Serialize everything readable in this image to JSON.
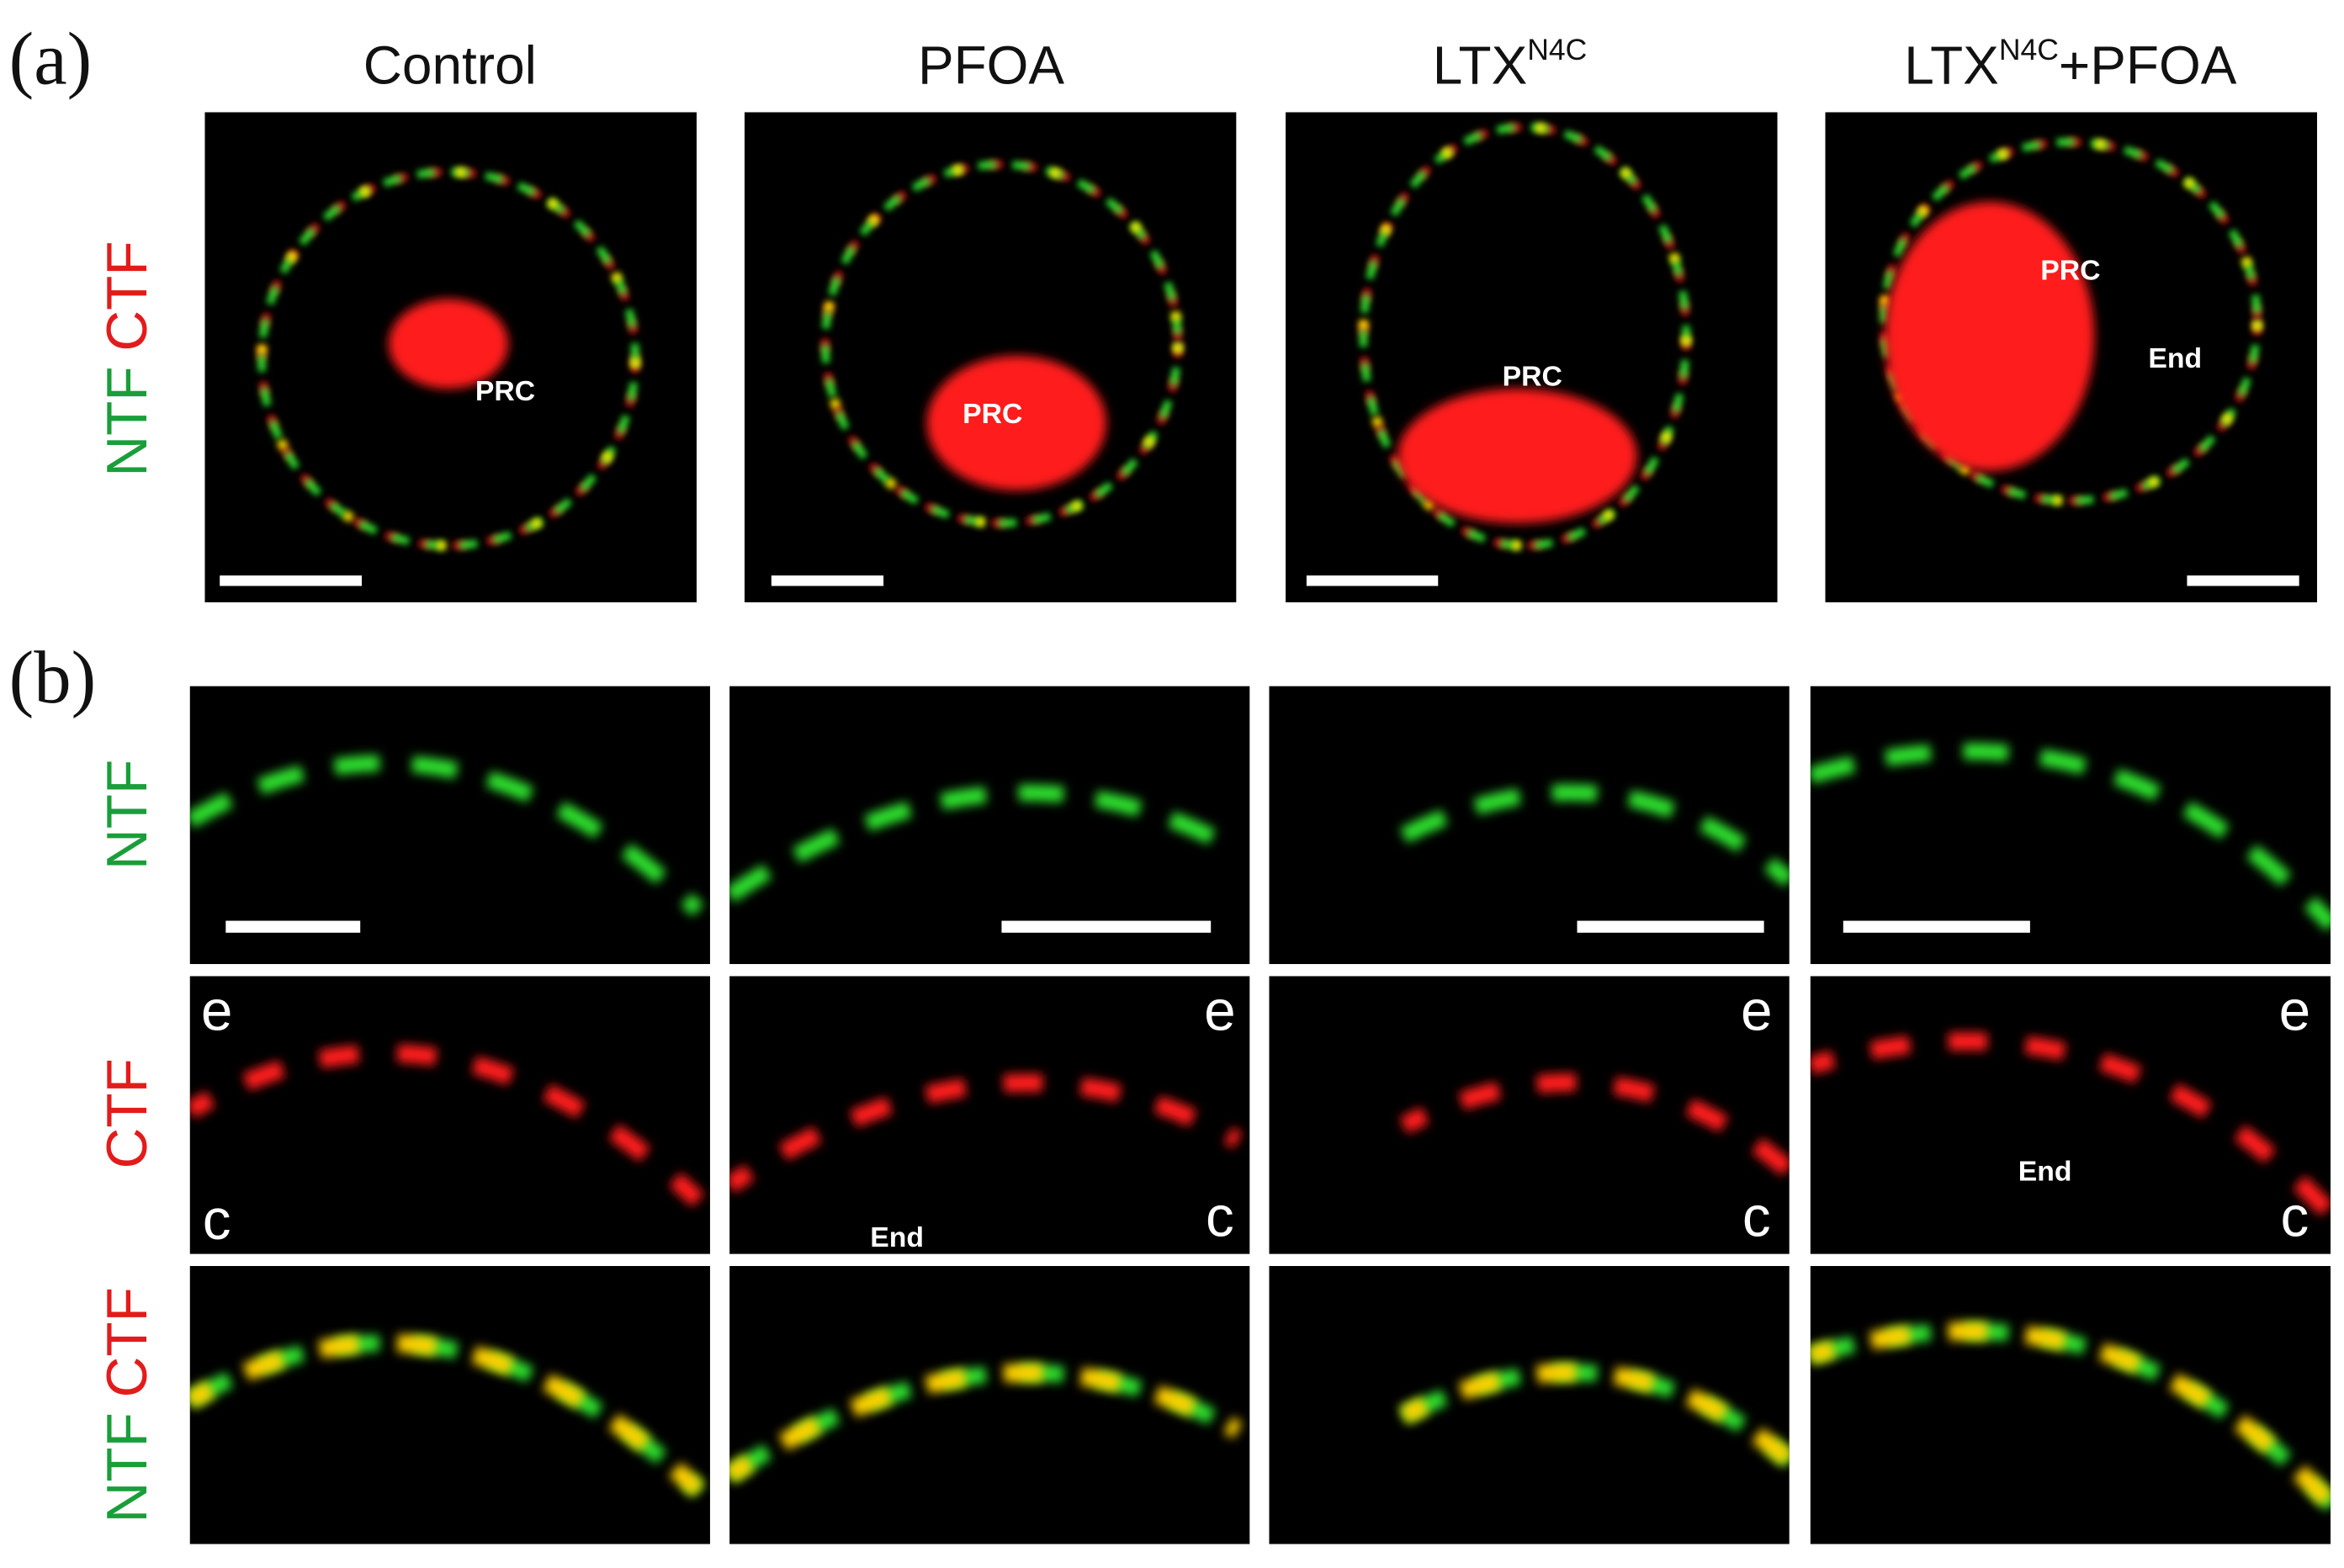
{
  "panel_a": {
    "label": "(a)",
    "row_label": [
      "NTF",
      "CTF"
    ],
    "columns": [
      {
        "title": "Control"
      },
      {
        "title": "PFOA"
      },
      {
        "title": "LTX",
        "sup": "N4C"
      },
      {
        "title": "LTX",
        "sup": "N4C",
        "suffix": "+PFOA"
      }
    ],
    "annotations": [
      [
        "PRC"
      ],
      [
        "PRC"
      ],
      [
        "PRC"
      ],
      [
        "PRC",
        "End"
      ]
    ]
  },
  "panel_b": {
    "label": "(b)",
    "row_labels": [
      [
        "NTF"
      ],
      [
        "CTF"
      ],
      [
        "NTF",
        "CTF"
      ]
    ],
    "ctf_annotations": [
      [
        "e",
        "c"
      ],
      [
        "e",
        "c",
        "End"
      ],
      [
        "e",
        "c"
      ],
      [
        "e",
        "c",
        "End"
      ]
    ]
  }
}
